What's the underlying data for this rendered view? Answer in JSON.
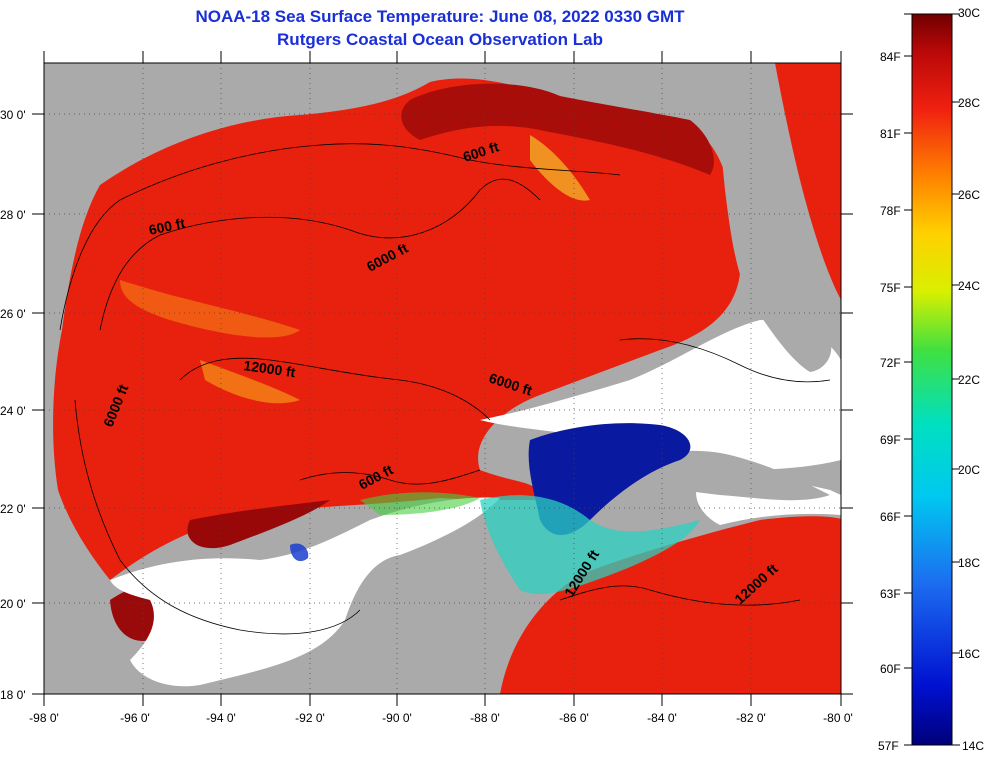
{
  "title": "NOAA-18 Sea Surface Temperature:  June 08, 2022 0330 GMT",
  "subtitle": "Rutgers Coastal Ocean Observation Lab",
  "axes": {
    "lon_ticks": [
      "-98 0'",
      "-96 0'",
      "-94 0'",
      "-92 0'",
      "-90 0'",
      "-88 0'",
      "-86 0'",
      "-84 0'",
      "-82 0'",
      "-80 0'"
    ],
    "lat_ticks": [
      "18 0'",
      "20 0'",
      "22 0'",
      "24 0'",
      "26 0'",
      "28 0'",
      "30 0'"
    ]
  },
  "contour_labels": [
    "600 ft",
    "600 ft",
    "6000 ft",
    "12000 ft",
    "6000 ft",
    "6000 ft",
    "600 ft",
    "12000 ft",
    "12000 ft"
  ],
  "colorbar": {
    "celsius": [
      "30C",
      "28C",
      "26C",
      "24C",
      "22C",
      "20C",
      "18C",
      "16C",
      "14C"
    ],
    "fahrenheit": [
      "84F",
      "81F",
      "78F",
      "75F",
      "72F",
      "69F",
      "66F",
      "63F",
      "60F",
      "57F"
    ]
  },
  "colors": {
    "title": "#1a2fd6",
    "land": "#aaaaaa",
    "cloud": "#ffffff",
    "warm": "#e8210f",
    "hot": "#9a0808",
    "cold": "#0a1aa0"
  }
}
